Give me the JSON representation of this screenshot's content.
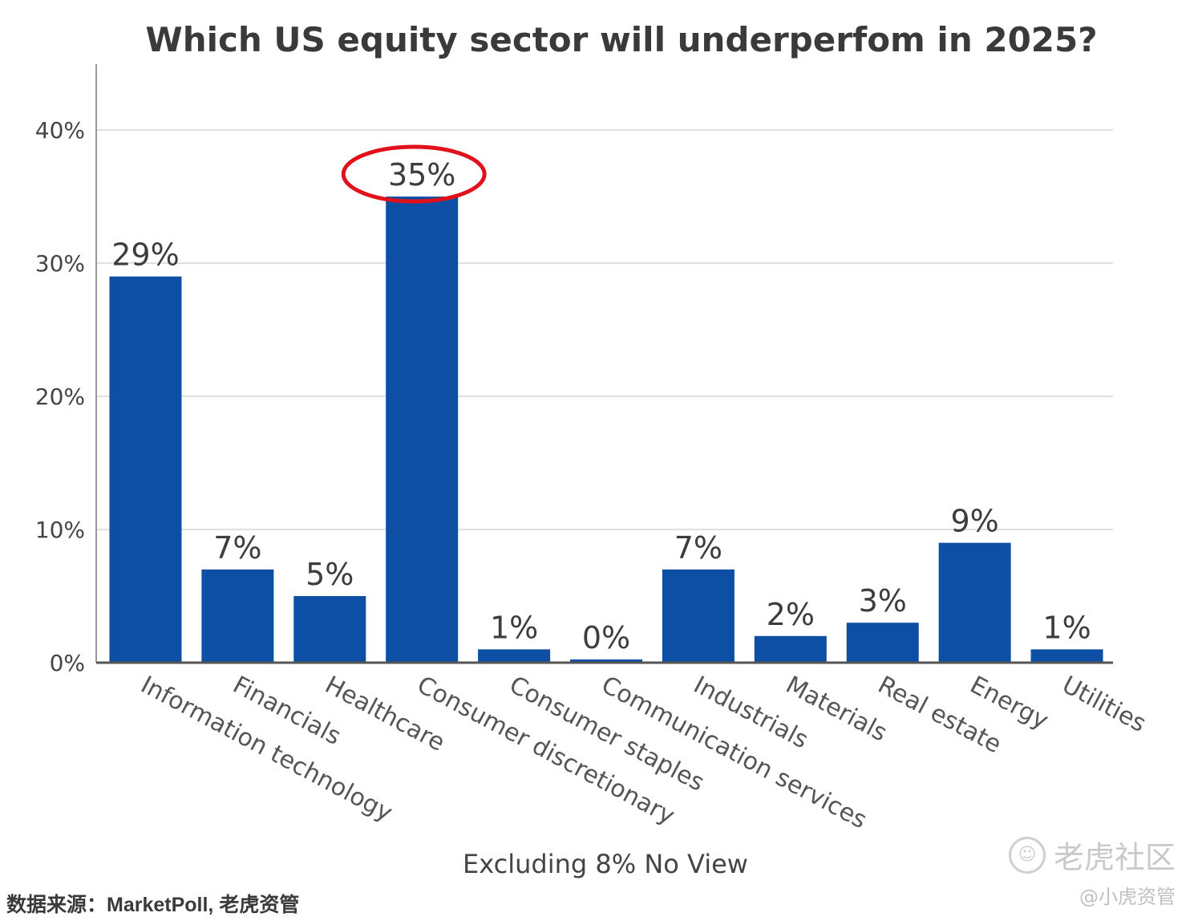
{
  "chart_data": {
    "type": "bar",
    "title": "Which US equity sector will underperfom in 2025?",
    "categories": [
      "Information technology",
      "Financials",
      "Healthcare",
      "Consumer discretionary",
      "Consumer staples",
      "Communication services",
      "Industrials",
      "Materials",
      "Real estate",
      "Energy",
      "Utilities"
    ],
    "values": [
      29,
      7,
      5,
      35,
      1,
      0,
      7,
      2,
      3,
      9,
      1
    ],
    "data_labels": [
      "29%",
      "7%",
      "5%",
      "35%",
      "1%",
      "0%",
      "7%",
      "2%",
      "3%",
      "9%",
      "1%"
    ],
    "yticks": [
      "0%",
      "10%",
      "20%",
      "30%",
      "40%"
    ],
    "ylim": [
      0,
      44
    ],
    "grid": true,
    "bar_color": "#0e4fa6",
    "highlight_color": "#e0111b",
    "highlighted_category": "Consumer discretionary",
    "footnote": "Excluding 8% No View"
  },
  "source_text": "数据来源：MarketPoll, 老虎资管",
  "watermark": {
    "brand": "老虎社区",
    "handle": "@小虎资管",
    "logo_icon": "tiger-community-logo-icon"
  }
}
